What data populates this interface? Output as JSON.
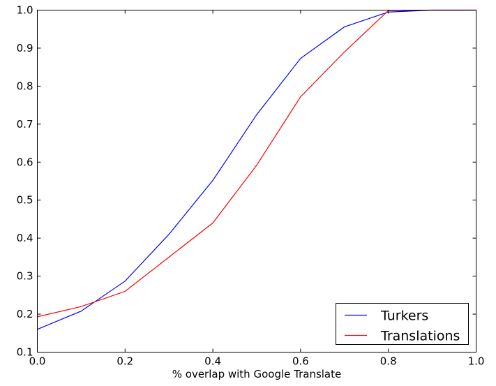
{
  "chart_data": {
    "type": "line",
    "title": "",
    "xlabel": "% overlap with Google Translate",
    "ylabel": "",
    "xlim": [
      0.0,
      1.0
    ],
    "ylim": [
      0.1,
      1.0
    ],
    "x_ticks": [
      "0.0",
      "0.2",
      "0.4",
      "0.6",
      "0.8",
      "1.0"
    ],
    "y_ticks": [
      "0.1",
      "0.2",
      "0.3",
      "0.4",
      "0.5",
      "0.6",
      "0.7",
      "0.8",
      "0.9",
      "1.0"
    ],
    "grid": false,
    "legend_position": "bottom-right",
    "series": [
      {
        "name": "Turkers",
        "color": "#0000ff",
        "x": [
          0.0,
          0.1,
          0.2,
          0.3,
          0.4,
          0.5,
          0.6,
          0.7,
          0.8,
          0.9,
          1.0
        ],
        "y": [
          0.16,
          0.208,
          0.287,
          0.41,
          0.552,
          0.725,
          0.873,
          0.956,
          0.995,
          1.0,
          1.0
        ]
      },
      {
        "name": "Translations",
        "color": "#ff0000",
        "x": [
          0.0,
          0.1,
          0.2,
          0.3,
          0.4,
          0.5,
          0.6,
          0.7,
          0.8,
          0.9,
          1.0
        ],
        "y": [
          0.193,
          0.22,
          0.26,
          0.35,
          0.44,
          0.592,
          0.772,
          0.89,
          0.999,
          1.0,
          1.0
        ]
      }
    ]
  }
}
